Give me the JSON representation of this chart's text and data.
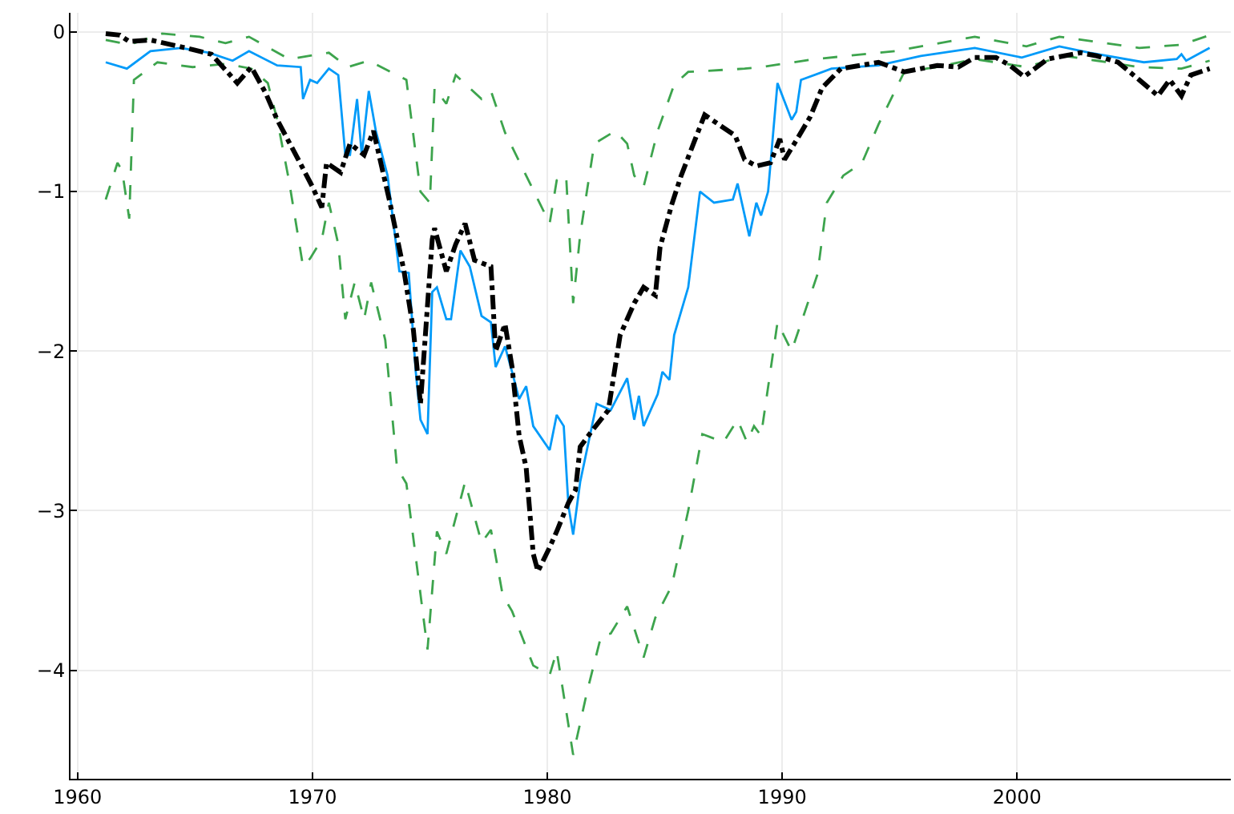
{
  "chart_data": {
    "type": "line",
    "xlim": [
      1959.7,
      2009.1
    ],
    "ylim": [
      -4.68,
      0.12
    ],
    "xticks": [
      1960,
      1970,
      1980,
      1990,
      2000
    ],
    "yticks": [
      {
        "value": 0,
        "label": "0"
      },
      {
        "value": -1,
        "label": "−1"
      },
      {
        "value": -2,
        "label": "−2"
      },
      {
        "value": -3,
        "label": "−3"
      },
      {
        "value": -4,
        "label": "−4"
      }
    ],
    "grid": true,
    "marker": "none",
    "series": [
      {
        "color": "#3da44d",
        "line_style": "dashed",
        "x": [
          1961.2,
          1962.2,
          1963.6,
          1965.2,
          1966.3,
          1967.3,
          1969.0,
          1970.7,
          1971.5,
          1972.4,
          1974.0,
          1974.6,
          1975.0,
          1975.2,
          1975.7,
          1976.1,
          1977.2,
          1977.6,
          1978.2,
          1979.0,
          1980.1,
          1980.4,
          1980.8,
          1981.1,
          1981.4,
          1982.0,
          1982.9,
          1983.4,
          1983.7,
          1984.1,
          1984.7,
          1985.4,
          1986.0,
          1988.4,
          1989.1,
          1991.4,
          1994.8,
          1998.2,
          2000.4,
          2001.8,
          2005.2,
          2007.0,
          2008.2
        ],
        "values": [
          -0.05,
          -0.08,
          -0.01,
          -0.03,
          -0.07,
          -0.03,
          -0.17,
          -0.13,
          -0.22,
          -0.18,
          -0.3,
          -1.0,
          -1.07,
          -0.35,
          -0.45,
          -0.27,
          -0.42,
          -0.37,
          -0.63,
          -0.87,
          -1.2,
          -0.93,
          -0.9,
          -1.7,
          -1.27,
          -0.7,
          -0.62,
          -0.7,
          -0.9,
          -0.97,
          -0.62,
          -0.33,
          -0.25,
          -0.23,
          -0.22,
          -0.17,
          -0.12,
          -0.03,
          -0.09,
          -0.03,
          -0.1,
          -0.08,
          -0.02
        ]
      },
      {
        "color": "#3da44d",
        "line_style": "dashed",
        "x": [
          1961.2,
          1961.7,
          1961.9,
          1962.2,
          1962.4,
          1963.4,
          1964.9,
          1966.3,
          1967.4,
          1968.1,
          1968.5,
          1969.0,
          1969.6,
          1969.9,
          1970.4,
          1970.7,
          1971.1,
          1971.4,
          1971.8,
          1972.2,
          1972.5,
          1973.1,
          1973.6,
          1974.0,
          1974.9,
          1975.3,
          1975.7,
          1976.5,
          1977.2,
          1977.6,
          1978.1,
          1978.5,
          1979.4,
          1980.1,
          1980.4,
          1981.1,
          1981.7,
          1982.3,
          1982.7,
          1983.4,
          1984.1,
          1984.6,
          1985.3,
          1986.0,
          1986.6,
          1987.5,
          1988.1,
          1988.5,
          1988.8,
          1989.1,
          1989.8,
          1990.4,
          1991.5,
          1991.9,
          1992.6,
          1993.4,
          1994.1,
          1995.2,
          1996.6,
          1998.2,
          2000.4,
          2002.0,
          2003.4,
          2005.2,
          2007.0,
          2008.2
        ],
        "values": [
          -1.05,
          -0.82,
          -0.87,
          -1.17,
          -0.3,
          -0.19,
          -0.22,
          -0.2,
          -0.23,
          -0.32,
          -0.55,
          -0.93,
          -1.47,
          -1.42,
          -1.3,
          -1.07,
          -1.33,
          -1.8,
          -1.57,
          -1.8,
          -1.57,
          -1.93,
          -2.73,
          -2.83,
          -3.87,
          -3.13,
          -3.27,
          -2.82,
          -3.2,
          -3.12,
          -3.53,
          -3.63,
          -3.97,
          -4.03,
          -3.88,
          -4.53,
          -4.13,
          -3.78,
          -3.77,
          -3.6,
          -3.92,
          -3.67,
          -3.47,
          -3.0,
          -2.52,
          -2.57,
          -2.43,
          -2.57,
          -2.47,
          -2.53,
          -1.82,
          -2.0,
          -1.52,
          -1.07,
          -0.9,
          -0.82,
          -0.58,
          -0.25,
          -0.22,
          -0.17,
          -0.22,
          -0.15,
          -0.18,
          -0.22,
          -0.23,
          -0.18
        ]
      },
      {
        "color": "#009af9",
        "line_style": "solid",
        "x": [
          1961.2,
          1962.1,
          1963.1,
          1964.4,
          1965.6,
          1966.6,
          1967.3,
          1968.5,
          1969.5,
          1969.6,
          1969.9,
          1970.2,
          1970.7,
          1971.1,
          1971.4,
          1971.6,
          1971.9,
          1972.1,
          1972.4,
          1972.7,
          1973.2,
          1973.7,
          1974.1,
          1974.4,
          1974.6,
          1974.9,
          1975.1,
          1975.3,
          1975.7,
          1975.9,
          1976.3,
          1976.7,
          1977.2,
          1977.6,
          1977.8,
          1978.2,
          1978.5,
          1978.8,
          1979.1,
          1979.4,
          1980.1,
          1980.4,
          1980.7,
          1980.9,
          1981.1,
          1981.4,
          1982.1,
          1982.7,
          1983.4,
          1983.7,
          1983.9,
          1984.1,
          1984.7,
          1984.9,
          1985.2,
          1985.4,
          1986.0,
          1986.5,
          1987.1,
          1987.9,
          1988.1,
          1988.6,
          1988.9,
          1989.1,
          1989.4,
          1989.8,
          1990.4,
          1990.6,
          1990.8,
          1992.1,
          1994.1,
          1995.9,
          1998.2,
          2000.2,
          2001.8,
          2003.1,
          2005.4,
          2006.8,
          2007.0,
          2007.2,
          2008.2
        ],
        "values": [
          -0.19,
          -0.23,
          -0.12,
          -0.1,
          -0.13,
          -0.18,
          -0.12,
          -0.21,
          -0.22,
          -0.42,
          -0.3,
          -0.32,
          -0.23,
          -0.27,
          -0.77,
          -0.77,
          -0.42,
          -0.77,
          -0.37,
          -0.62,
          -0.9,
          -1.5,
          -1.51,
          -2.13,
          -2.43,
          -2.52,
          -1.63,
          -1.6,
          -1.8,
          -1.8,
          -1.37,
          -1.47,
          -1.78,
          -1.82,
          -2.1,
          -1.97,
          -2.13,
          -2.3,
          -2.22,
          -2.47,
          -2.62,
          -2.4,
          -2.47,
          -2.97,
          -3.15,
          -2.82,
          -2.33,
          -2.37,
          -2.17,
          -2.43,
          -2.28,
          -2.47,
          -2.27,
          -2.13,
          -2.18,
          -1.9,
          -1.6,
          -1.0,
          -1.07,
          -1.05,
          -0.95,
          -1.28,
          -1.07,
          -1.15,
          -1.0,
          -0.32,
          -0.55,
          -0.5,
          -0.3,
          -0.23,
          -0.21,
          -0.15,
          -0.1,
          -0.16,
          -0.09,
          -0.13,
          -0.19,
          -0.17,
          -0.14,
          -0.18,
          -0.1
        ]
      },
      {
        "color": "#000000",
        "line_style": "dashdot",
        "x": [
          1961.2,
          1961.8,
          1962.2,
          1963.1,
          1964.0,
          1964.9,
          1965.7,
          1966.8,
          1967.4,
          1968.0,
          1968.5,
          1969.4,
          1970.0,
          1970.4,
          1970.6,
          1971.2,
          1971.6,
          1972.2,
          1972.6,
          1973.3,
          1973.9,
          1974.3,
          1974.6,
          1975.1,
          1975.2,
          1975.7,
          1976.1,
          1976.5,
          1976.9,
          1977.6,
          1977.8,
          1978.2,
          1978.5,
          1978.8,
          1979.1,
          1979.4,
          1979.6,
          1980.1,
          1980.4,
          1980.9,
          1981.2,
          1981.4,
          1981.9,
          1982.6,
          1983.1,
          1983.7,
          1984.1,
          1984.6,
          1984.8,
          1985.3,
          1985.7,
          1986.3,
          1986.7,
          1988.0,
          1988.4,
          1988.9,
          1989.5,
          1989.9,
          1990.1,
          1990.6,
          1991.2,
          1991.7,
          1992.5,
          1994.1,
          1995.2,
          1996.6,
          1997.5,
          1998.2,
          1999.1,
          1999.7,
          2000.3,
          2001.3,
          2002.7,
          2003.4,
          2004.3,
          2005.2,
          2006.0,
          2006.5,
          2007.0,
          2007.4,
          2008.2
        ],
        "values": [
          -0.01,
          -0.02,
          -0.06,
          -0.05,
          -0.08,
          -0.11,
          -0.14,
          -0.32,
          -0.22,
          -0.38,
          -0.55,
          -0.8,
          -0.97,
          -1.1,
          -0.82,
          -0.88,
          -0.7,
          -0.77,
          -0.62,
          -1.07,
          -1.5,
          -1.87,
          -2.33,
          -1.3,
          -1.23,
          -1.5,
          -1.33,
          -1.2,
          -1.43,
          -1.47,
          -2.0,
          -1.83,
          -2.1,
          -2.53,
          -2.73,
          -3.27,
          -3.38,
          -3.23,
          -3.13,
          -2.95,
          -2.87,
          -2.6,
          -2.5,
          -2.37,
          -1.9,
          -1.7,
          -1.6,
          -1.65,
          -1.35,
          -1.08,
          -0.9,
          -0.67,
          -0.52,
          -0.65,
          -0.8,
          -0.84,
          -0.82,
          -0.67,
          -0.8,
          -0.68,
          -0.53,
          -0.35,
          -0.23,
          -0.19,
          -0.25,
          -0.21,
          -0.22,
          -0.16,
          -0.16,
          -0.21,
          -0.28,
          -0.17,
          -0.13,
          -0.15,
          -0.19,
          -0.3,
          -0.4,
          -0.3,
          -0.4,
          -0.27,
          -0.23
        ]
      }
    ]
  }
}
